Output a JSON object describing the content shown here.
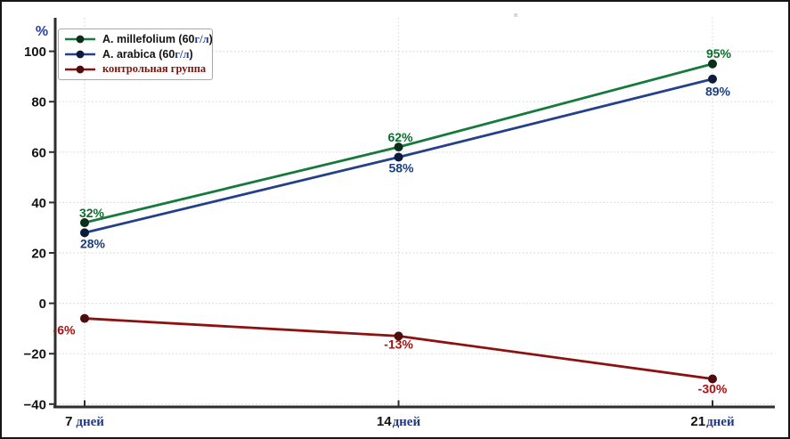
{
  "figure": {
    "background": "#ffffff",
    "border_color": "#151515",
    "grid_color": "#d9d9d9",
    "spine_color": "#2e2e2e"
  },
  "legend": {
    "entries": [
      {
        "label_prefix": "A. millefolium (60",
        "label_unit": "г/л",
        "label_suffix": ")",
        "line_color": "#157a3b",
        "marker_color": "#0b2e18"
      },
      {
        "label_prefix": "A. arabica (60",
        "label_unit": "г/л",
        "label_suffix": ")",
        "line_color": "#24408a",
        "marker_color": "#0d1b3d"
      },
      {
        "label_prefix": "контрольная группа",
        "label_unit": "",
        "label_suffix": "",
        "line_color": "#8e1111",
        "marker_color": "#4f0c0c"
      }
    ]
  },
  "chart_data": {
    "type": "line",
    "title": "",
    "ylabel": "%",
    "xlabel": "",
    "categories": [
      "7 дней",
      "14 дней",
      "21 дней"
    ],
    "category_parts": [
      {
        "num": "7",
        "word": "дней",
        "gap": 4
      },
      {
        "num": "14",
        "word": "дней",
        "gap": 1
      },
      {
        "num": "21",
        "word": "дней",
        "gap": 1
      }
    ],
    "series": [
      {
        "name": "A. millefolium (60г/л)",
        "values": [
          32,
          62,
          95
        ],
        "labels": [
          "32%",
          "62%",
          "95%"
        ],
        "line_color": "#157a3b",
        "marker_color": "#0b2e18",
        "label_color": "#0b6e2e"
      },
      {
        "name": "A. arabica (60г/л)",
        "values": [
          28,
          58,
          89
        ],
        "labels": [
          "28%",
          "58%",
          "89%"
        ],
        "line_color": "#24408a",
        "marker_color": "#0d1b3d",
        "label_color": "#1a3f7e"
      },
      {
        "name": "контрольная группа",
        "values": [
          -6,
          -13,
          -30
        ],
        "labels": [
          "-6%",
          "-13%",
          "-30%"
        ],
        "line_color": "#8e1111",
        "marker_color": "#4f0c0c",
        "label_color": "#a31313"
      }
    ],
    "yticks": [
      100,
      80,
      60,
      40,
      20,
      0,
      -20,
      -40
    ],
    "ytick_labels": [
      "100",
      "80",
      "60",
      "40",
      "20",
      "0",
      "−20",
      "−40"
    ],
    "ylim": [
      -40,
      107
    ],
    "grid": true,
    "legend_position": "upper-left"
  }
}
